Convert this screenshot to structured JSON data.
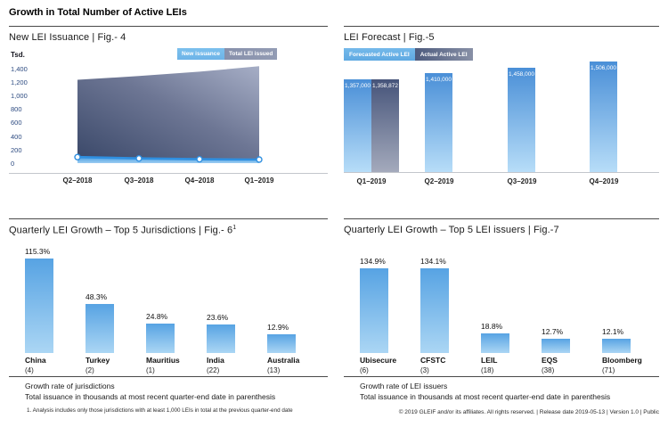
{
  "page": {
    "title": "Growth in Total Number of Active LEIs",
    "footnote": "1. Analysis includes only those jurisdictions with at least 1,000 LEIs in total at the previous quarter-end date",
    "footer": "© 2019 GLEIF and/or its affiliates. All rights reserved.  |  Release date 2019-05-13  |  Version 1.0  |  Public"
  },
  "colors": {
    "accent_light_blue": "#57a3e3",
    "bar_blue_top": "#4a8fd7",
    "bar_blue_bottom": "#b7ddf8",
    "slate_dark": "#46547a",
    "axis_text_navy": "#2c4a80"
  },
  "chart_data": [
    {
      "id": "fig4",
      "type": "area",
      "title": "New LEI Issuance  |  Fig.- 4",
      "unit_label": "Tsd.",
      "legend": [
        "New issuance",
        "Total LEI issued"
      ],
      "x": [
        "Q2–2018",
        "Q3–2018",
        "Q4–2018",
        "Q1–2019"
      ],
      "series": [
        {
          "name": "New issuance",
          "values": [
            90,
            70,
            58,
            52
          ]
        },
        {
          "name": "Total LEI issued",
          "values": [
            1230,
            1285,
            1350,
            1430
          ]
        }
      ],
      "yticks": [
        "1,400",
        "1,200",
        "1,000",
        "800",
        "600",
        "400",
        "200",
        "0"
      ],
      "ylim": [
        0,
        1400
      ],
      "grid": false,
      "legend_position": "top-right"
    },
    {
      "id": "fig5",
      "type": "bar",
      "title": "LEI Forecast  |  Fig.-5",
      "legend": [
        "Forecasted Active LEI",
        "Actual Active LEI"
      ],
      "categories": [
        "Q1–2019",
        "Q2–2019",
        "Q3–2019",
        "Q4–2019"
      ],
      "series": [
        {
          "name": "Forecasted Active LEI",
          "values": [
            1357000,
            1410000,
            1458000,
            1506000
          ],
          "labels": [
            "1,357,000",
            "1,410,000",
            "1,458,000",
            "1,506,000"
          ]
        },
        {
          "name": "Actual Active LEI",
          "values": [
            1358872
          ],
          "labels": [
            "1,358,872"
          ]
        }
      ],
      "ylim": [
        600000,
        1550000
      ],
      "grid": false,
      "legend_position": "top-left"
    },
    {
      "id": "fig6",
      "type": "bar",
      "title": "Quarterly LEI Growth – Top 5 Jurisdictions  |  Fig.- 6",
      "title_sup": "1",
      "categories": [
        "China",
        "Turkey",
        "Mauritius",
        "India",
        "Australia"
      ],
      "counts": [
        "(4)",
        "(2)",
        "(1)",
        "(22)",
        "(13)"
      ],
      "values": [
        115.3,
        48.3,
        24.8,
        23.6,
        12.9
      ],
      "value_labels": [
        "115.3%",
        "48.3%",
        "24.8%",
        "23.6%",
        "12.9%"
      ],
      "notes": [
        "Growth rate of jurisdictions",
        "Total issuance in thousands at most recent quarter-end date in parenthesis"
      ],
      "grid": false
    },
    {
      "id": "fig7",
      "type": "bar",
      "title": "Quarterly LEI Growth – Top 5 LEI issuers  |  Fig.-7",
      "categories": [
        "Ubisecure",
        "CFSTC",
        "LEIL",
        "EQS",
        "Bloomberg"
      ],
      "counts": [
        "(6)",
        "(3)",
        "(18)",
        "(38)",
        "(71)"
      ],
      "values": [
        134.9,
        134.1,
        18.8,
        12.7,
        12.1
      ],
      "value_labels": [
        "134.9%",
        "134.1%",
        "18.8%",
        "12.7%",
        "12.1%"
      ],
      "notes": [
        "Growth rate of LEI issuers",
        "Total issuance in thousands at most recent quarter-end date in parenthesis"
      ],
      "grid": false
    }
  ]
}
